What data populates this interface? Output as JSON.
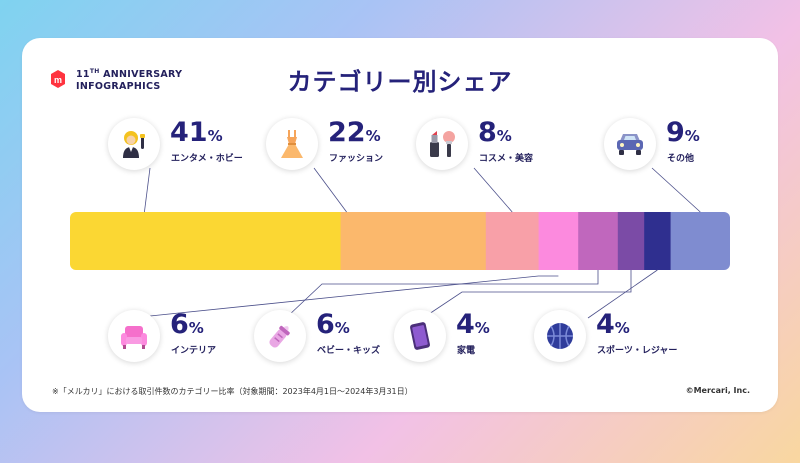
{
  "brand": {
    "line1": "11",
    "line1_sup": "TH",
    "line1_rest": " ANNIVERSARY",
    "line2": "INFOGRAPHICS",
    "logo_color": "#ff333f"
  },
  "title": "カテゴリー別シェア",
  "footnote": "※「メルカリ」における取引件数のカテゴリー比率（対象期間：2023年4月1日〜2024年3月31日）",
  "copyright": "©Mercari, Inc.",
  "pct_sign": "%",
  "categories": [
    {
      "label": "エンタメ・ホビー",
      "value": "41",
      "color": "#fbd733",
      "icon": "entertainment-figure-icon"
    },
    {
      "label": "ファッション",
      "value": "22",
      "color": "#fbb86c",
      "icon": "dress-icon"
    },
    {
      "label": "コスメ・美容",
      "value": "8",
      "color": "#f8a0a8",
      "icon": "cosmetics-icon"
    },
    {
      "label": "インテリア",
      "value": "6",
      "color": "#fc8ade",
      "icon": "sofa-icon"
    },
    {
      "label": "ベビー・キッズ",
      "value": "6",
      "color": "#c067bd",
      "icon": "baby-bottle-icon"
    },
    {
      "label": "家電",
      "value": "4",
      "color": "#7b4ba6",
      "icon": "smartphone-icon"
    },
    {
      "label": "スポーツ・レジャー",
      "value": "4",
      "color": "#2f2f8f",
      "icon": "basketball-icon"
    },
    {
      "label": "その他",
      "value": "9",
      "color": "#7f8cd0",
      "icon": "car-icon"
    }
  ],
  "chart_data": {
    "type": "bar",
    "orientation": "horizontal-stacked",
    "title": "カテゴリー別シェア",
    "unit": "%",
    "categories": [
      "エンタメ・ホビー",
      "ファッション",
      "コスメ・美容",
      "インテリア",
      "ベビー・キッズ",
      "家電",
      "スポーツ・レジャー",
      "その他"
    ],
    "values": [
      41,
      22,
      8,
      6,
      6,
      4,
      4,
      9
    ],
    "colors": [
      "#fbd733",
      "#fbb86c",
      "#f8a0a8",
      "#fc8ade",
      "#c067bd",
      "#7b4ba6",
      "#2f2f8f",
      "#7f8cd0"
    ]
  }
}
